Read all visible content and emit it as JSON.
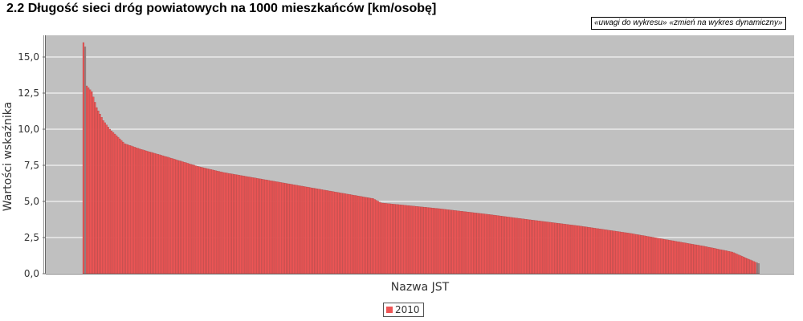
{
  "title": "2.2 Długość sieci dróg powiatowych na 1000 mieszkańców [km/osobę]",
  "links": {
    "notes": "«uwagi do wykresu»",
    "dynamic": "«zmień na wykres dynamiczny»"
  },
  "colors": {
    "bar": "#ee5555",
    "bar_edge": "#9a3a3a",
    "plot_bg": "#c0c0c0",
    "grid": "#ffffff",
    "axis": "#666666",
    "last_bars": "#8c8c8c"
  },
  "chart_data": {
    "type": "bar",
    "xlabel": "Nazwa JST",
    "ylabel": "Wartości wskaźnika",
    "ylim": [
      0,
      16.5
    ],
    "yticks": [
      "0,0",
      "2,5",
      "5,0",
      "7,5",
      "10,0",
      "12,5",
      "15,0"
    ],
    "ytick_values": [
      0,
      2.5,
      5,
      7.5,
      10,
      12.5,
      15
    ],
    "grid": true,
    "legend_position": "bottom-center",
    "series": [
      {
        "name": "2010",
        "profile": [
          [
            0,
            16.0
          ],
          [
            1,
            15.7
          ],
          [
            2,
            13.0
          ],
          [
            5,
            12.6
          ],
          [
            8,
            11.5
          ],
          [
            12,
            10.6
          ],
          [
            16,
            10.0
          ],
          [
            25,
            9.0
          ],
          [
            35,
            8.6
          ],
          [
            50,
            8.1
          ],
          [
            70,
            7.4
          ],
          [
            85,
            7.0
          ],
          [
            110,
            6.5
          ],
          [
            135,
            6.0
          ],
          [
            165,
            5.4
          ],
          [
            175,
            5.2
          ],
          [
            180,
            4.9
          ],
          [
            215,
            4.5
          ],
          [
            245,
            4.1
          ],
          [
            265,
            3.8
          ],
          [
            300,
            3.3
          ],
          [
            330,
            2.8
          ],
          [
            355,
            2.3
          ],
          [
            375,
            1.9
          ],
          [
            392,
            1.5
          ],
          [
            402,
            1.0
          ],
          [
            408,
            0.7
          ]
        ],
        "count": 409
      }
    ]
  }
}
